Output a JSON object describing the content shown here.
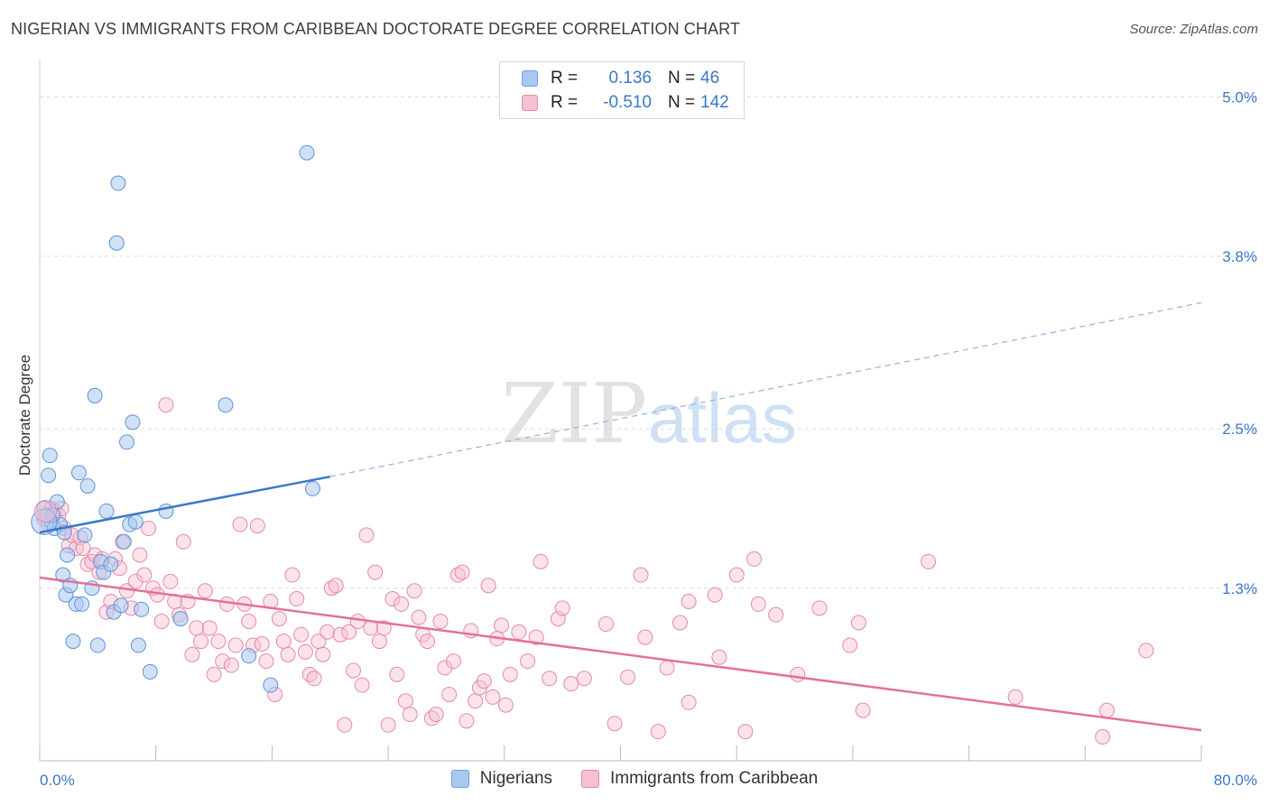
{
  "header": {
    "title": "NIGERIAN VS IMMIGRANTS FROM CARIBBEAN DOCTORATE DEGREE CORRELATION CHART",
    "source": "Source: ZipAtlas.com"
  },
  "watermark": {
    "part1": "ZIP",
    "part2": "atlas"
  },
  "legend": {
    "rows": [
      {
        "r_label": "R =",
        "r_value": "0.136",
        "n_label": "N =",
        "n_value": "46",
        "color": "#a9c8f0",
        "border": "#6f9fdc"
      },
      {
        "r_label": "R =",
        "r_value": "-0.510",
        "n_label": "N =",
        "n_value": "142",
        "color": "#f6bfd2",
        "border": "#e68aaa"
      }
    ]
  },
  "bottom_legend": {
    "items": [
      {
        "label": "Nigerians",
        "color": "#a9c8f0",
        "border": "#6f9fdc"
      },
      {
        "label": "Immigrants from Caribbean",
        "color": "#f6bfd2",
        "border": "#e68aaa"
      }
    ]
  },
  "chart_data": {
    "type": "scatter",
    "title": "NIGERIAN VS IMMIGRANTS FROM CARIBBEAN DOCTORATE DEGREE CORRELATION CHART",
    "xlabel": "",
    "ylabel": "Doctorate Degree",
    "xlim": [
      0,
      80
    ],
    "ylim": [
      0,
      5.2
    ],
    "x_tick_labels": [
      "0.0%",
      "80.0%"
    ],
    "y_ticks": [
      1.3,
      2.5,
      3.8,
      5.0
    ],
    "y_tick_labels": [
      "1.3%",
      "2.5%",
      "3.8%",
      "5.0%"
    ],
    "grid": true,
    "legend_position": "top-center",
    "colors": {
      "nigerians": "#3a78c8",
      "caribbean": "#e4709a"
    },
    "series": [
      {
        "name": "Nigerians",
        "trend": {
          "x0": 0,
          "y0": 1.72,
          "x1": 20,
          "y1": 2.14,
          "dashed_to_x": 80,
          "dashed_to_y": 3.45
        },
        "points": [
          [
            0.3,
            1.9
          ],
          [
            0.5,
            1.85
          ],
          [
            0.6,
            2.15
          ],
          [
            0.7,
            2.3
          ],
          [
            0.8,
            1.8
          ],
          [
            1.0,
            1.75
          ],
          [
            1.2,
            1.95
          ],
          [
            1.4,
            1.78
          ],
          [
            1.6,
            1.4
          ],
          [
            1.8,
            1.25
          ],
          [
            1.9,
            1.55
          ],
          [
            2.1,
            1.32
          ],
          [
            2.3,
            0.9
          ],
          [
            2.5,
            1.18
          ],
          [
            2.7,
            2.17
          ],
          [
            2.9,
            1.18
          ],
          [
            3.1,
            1.7
          ],
          [
            3.3,
            2.07
          ],
          [
            3.6,
            1.3
          ],
          [
            3.8,
            2.75
          ],
          [
            4.0,
            0.87
          ],
          [
            4.2,
            1.5
          ],
          [
            4.4,
            1.42
          ],
          [
            4.6,
            1.88
          ],
          [
            4.9,
            1.48
          ],
          [
            5.1,
            1.12
          ],
          [
            5.3,
            3.9
          ],
          [
            5.4,
            4.35
          ],
          [
            5.6,
            1.17
          ],
          [
            5.8,
            1.65
          ],
          [
            6.0,
            2.4
          ],
          [
            6.2,
            1.78
          ],
          [
            6.4,
            2.55
          ],
          [
            6.6,
            1.8
          ],
          [
            6.8,
            0.87
          ],
          [
            7.0,
            1.14
          ],
          [
            7.6,
            0.67
          ],
          [
            8.7,
            1.88
          ],
          [
            9.7,
            1.07
          ],
          [
            12.8,
            2.68
          ],
          [
            14.4,
            0.79
          ],
          [
            15.9,
            0.57
          ],
          [
            18.4,
            4.58
          ],
          [
            18.8,
            2.05
          ],
          [
            0.9,
            1.85
          ],
          [
            1.7,
            1.72
          ]
        ]
      },
      {
        "name": "Immigrants from Caribbean",
        "trend": {
          "x0": 0,
          "y0": 1.38,
          "x1": 80,
          "y1": 0.23
        },
        "points": [
          [
            0.3,
            1.82
          ],
          [
            0.6,
            1.78
          ],
          [
            0.8,
            1.9
          ],
          [
            1.0,
            1.88
          ],
          [
            1.3,
            1.85
          ],
          [
            1.5,
            1.9
          ],
          [
            1.7,
            1.75
          ],
          [
            2.0,
            1.62
          ],
          [
            2.2,
            1.7
          ],
          [
            2.5,
            1.6
          ],
          [
            2.8,
            1.68
          ],
          [
            3.0,
            1.6
          ],
          [
            3.3,
            1.48
          ],
          [
            3.6,
            1.5
          ],
          [
            3.8,
            1.55
          ],
          [
            4.1,
            1.42
          ],
          [
            4.3,
            1.52
          ],
          [
            4.6,
            1.12
          ],
          [
            4.9,
            1.2
          ],
          [
            5.2,
            1.52
          ],
          [
            5.5,
            1.45
          ],
          [
            5.7,
            1.65
          ],
          [
            6.0,
            1.28
          ],
          [
            6.3,
            1.15
          ],
          [
            6.6,
            1.35
          ],
          [
            6.9,
            1.55
          ],
          [
            7.2,
            1.4
          ],
          [
            7.5,
            1.75
          ],
          [
            7.8,
            1.3
          ],
          [
            8.1,
            1.25
          ],
          [
            8.4,
            1.05
          ],
          [
            8.7,
            2.68
          ],
          [
            9.0,
            1.35
          ],
          [
            9.3,
            1.2
          ],
          [
            9.6,
            1.1
          ],
          [
            9.9,
            1.65
          ],
          [
            10.2,
            1.2
          ],
          [
            10.5,
            0.8
          ],
          [
            10.8,
            1.0
          ],
          [
            11.1,
            0.9
          ],
          [
            11.4,
            1.28
          ],
          [
            11.7,
            1.0
          ],
          [
            12.0,
            0.65
          ],
          [
            12.3,
            0.9
          ],
          [
            12.6,
            0.75
          ],
          [
            12.9,
            1.18
          ],
          [
            13.2,
            0.72
          ],
          [
            13.5,
            0.87
          ],
          [
            13.8,
            1.78
          ],
          [
            14.1,
            1.18
          ],
          [
            14.4,
            1.05
          ],
          [
            14.7,
            0.87
          ],
          [
            15.0,
            1.77
          ],
          [
            15.3,
            0.88
          ],
          [
            15.6,
            0.75
          ],
          [
            15.9,
            1.2
          ],
          [
            16.2,
            0.5
          ],
          [
            16.5,
            1.07
          ],
          [
            16.8,
            0.9
          ],
          [
            17.1,
            0.8
          ],
          [
            17.4,
            1.4
          ],
          [
            17.7,
            1.22
          ],
          [
            18.0,
            0.95
          ],
          [
            18.3,
            0.82
          ],
          [
            18.6,
            0.65
          ],
          [
            18.9,
            0.62
          ],
          [
            19.2,
            0.9
          ],
          [
            19.5,
            0.8
          ],
          [
            19.8,
            0.97
          ],
          [
            20.1,
            1.3
          ],
          [
            20.4,
            1.32
          ],
          [
            20.7,
            0.95
          ],
          [
            21.0,
            0.27
          ],
          [
            21.3,
            0.97
          ],
          [
            21.6,
            0.68
          ],
          [
            21.9,
            1.05
          ],
          [
            22.2,
            0.57
          ],
          [
            22.5,
            1.7
          ],
          [
            22.8,
            1.0
          ],
          [
            23.1,
            1.42
          ],
          [
            23.4,
            0.9
          ],
          [
            23.7,
            1.0
          ],
          [
            24.0,
            0.27
          ],
          [
            24.3,
            1.22
          ],
          [
            24.6,
            0.65
          ],
          [
            24.9,
            1.18
          ],
          [
            25.2,
            0.45
          ],
          [
            25.5,
            0.35
          ],
          [
            25.8,
            1.28
          ],
          [
            26.1,
            1.08
          ],
          [
            26.4,
            0.95
          ],
          [
            26.7,
            0.9
          ],
          [
            27.0,
            0.32
          ],
          [
            27.3,
            0.35
          ],
          [
            27.6,
            1.05
          ],
          [
            27.9,
            0.7
          ],
          [
            28.2,
            0.5
          ],
          [
            28.5,
            0.75
          ],
          [
            28.8,
            1.4
          ],
          [
            29.1,
            1.42
          ],
          [
            29.4,
            0.3
          ],
          [
            29.7,
            0.98
          ],
          [
            30.0,
            0.45
          ],
          [
            30.3,
            0.55
          ],
          [
            30.6,
            0.6
          ],
          [
            30.9,
            1.32
          ],
          [
            31.2,
            0.48
          ],
          [
            31.5,
            0.92
          ],
          [
            31.8,
            1.02
          ],
          [
            32.1,
            0.42
          ],
          [
            32.4,
            0.65
          ],
          [
            33.0,
            0.97
          ],
          [
            33.6,
            0.75
          ],
          [
            34.2,
            0.93
          ],
          [
            34.5,
            1.5
          ],
          [
            35.1,
            0.62
          ],
          [
            35.7,
            1.07
          ],
          [
            36.0,
            1.15
          ],
          [
            36.6,
            0.58
          ],
          [
            37.5,
            0.62
          ],
          [
            39.0,
            1.03
          ],
          [
            39.6,
            0.28
          ],
          [
            40.5,
            0.63
          ],
          [
            41.4,
            1.4
          ],
          [
            41.7,
            0.93
          ],
          [
            42.6,
            0.22
          ],
          [
            43.2,
            0.7
          ],
          [
            44.1,
            1.04
          ],
          [
            44.7,
            1.2
          ],
          [
            44.7,
            0.44
          ],
          [
            46.5,
            1.25
          ],
          [
            46.8,
            0.78
          ],
          [
            48.0,
            1.4
          ],
          [
            48.6,
            0.22
          ],
          [
            49.2,
            1.52
          ],
          [
            49.5,
            1.18
          ],
          [
            50.7,
            1.1
          ],
          [
            52.2,
            0.65
          ],
          [
            53.7,
            1.15
          ],
          [
            55.8,
            0.87
          ],
          [
            56.4,
            1.04
          ],
          [
            56.7,
            0.38
          ],
          [
            61.2,
            1.5
          ],
          [
            67.2,
            0.48
          ],
          [
            73.2,
            0.18
          ],
          [
            73.5,
            0.38
          ],
          [
            76.2,
            0.83
          ]
        ]
      }
    ]
  }
}
